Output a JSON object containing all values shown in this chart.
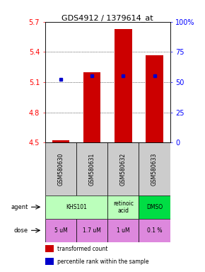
{
  "title": "GDS4912 / 1379614_at",
  "samples": [
    "GSM580630",
    "GSM580631",
    "GSM580632",
    "GSM580633"
  ],
  "bar_bottoms": [
    4.5,
    4.5,
    4.5,
    4.5
  ],
  "bar_tops": [
    4.52,
    5.2,
    5.63,
    5.37
  ],
  "percentile_values": [
    5.13,
    5.16,
    5.16,
    5.16
  ],
  "ylim": [
    4.5,
    5.7
  ],
  "yticks_left": [
    4.5,
    4.8,
    5.1,
    5.4,
    5.7
  ],
  "yticks_right": [
    0,
    25,
    50,
    75,
    100
  ],
  "bar_color": "#cc0000",
  "percentile_color": "#0000cc",
  "sample_bg_color": "#cccccc",
  "agent_groups": [
    {
      "label": "KHS101",
      "color": "#bbffbb",
      "start": 0,
      "end": 2
    },
    {
      "label": "retinoic\nacid",
      "color": "#bbffbb",
      "start": 2,
      "end": 3
    },
    {
      "label": "DMSO",
      "color": "#00dd44",
      "start": 3,
      "end": 4
    }
  ],
  "dose_items": [
    {
      "label": "5 uM",
      "start": 0,
      "end": 1
    },
    {
      "label": "1.7 uM",
      "start": 1,
      "end": 2
    },
    {
      "label": "1 uM",
      "start": 2,
      "end": 3
    },
    {
      "label": "0.1 %",
      "start": 3,
      "end": 4
    }
  ],
  "dose_color": "#dd88dd",
  "legend_items": [
    {
      "color": "#cc0000",
      "label": "transformed count"
    },
    {
      "color": "#0000cc",
      "label": "percentile rank within the sample"
    }
  ]
}
